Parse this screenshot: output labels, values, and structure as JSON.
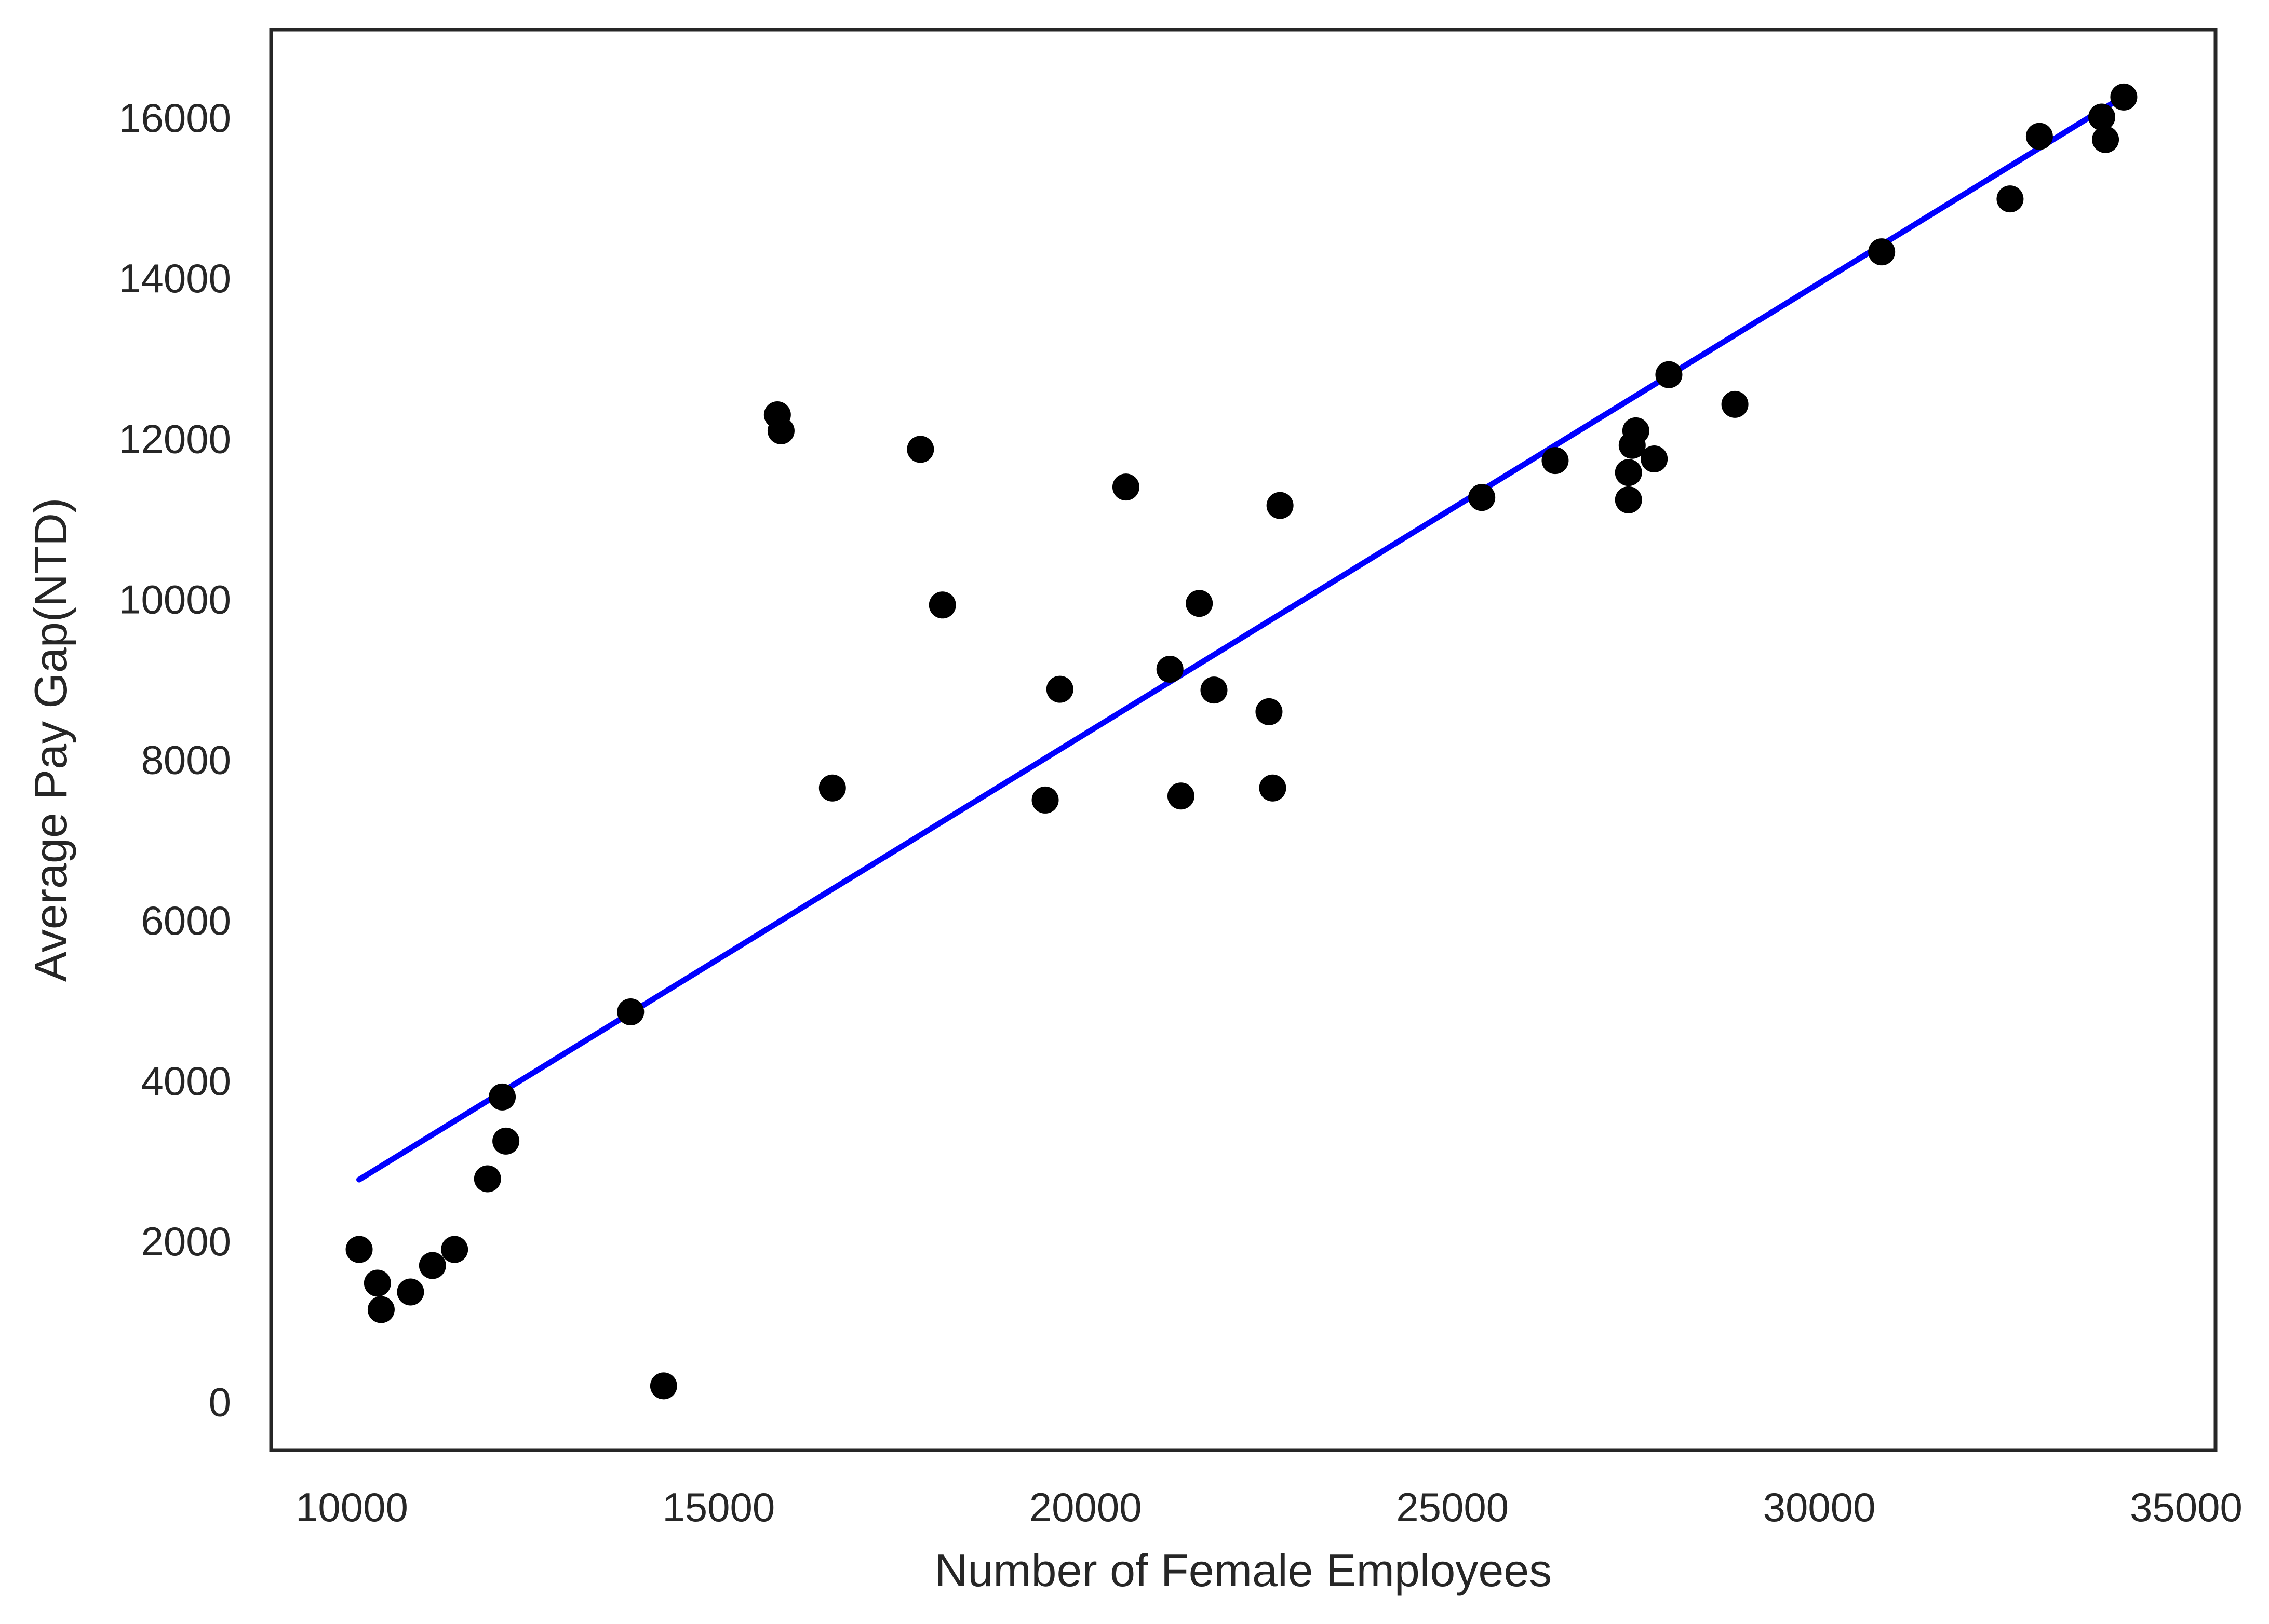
{
  "chart_data": {
    "type": "scatter",
    "title": "",
    "xlabel": "Number of Female Employees",
    "ylabel": "Average Pay Gap(NTD)",
    "xlim": [
      8900,
      35400
    ],
    "ylim": [
      -600,
      17100
    ],
    "x_ticks": [
      10000,
      15000,
      20000,
      25000,
      30000,
      35000
    ],
    "y_ticks": [
      0,
      2000,
      4000,
      6000,
      8000,
      10000,
      12000,
      14000,
      16000
    ],
    "grid": false,
    "legend": "none",
    "colors": {
      "points": "#000000",
      "fit_line": "#0000ff",
      "frame": "#262626",
      "text": "#262626"
    },
    "points": [
      [
        10100,
        1900
      ],
      [
        10350,
        1480
      ],
      [
        10400,
        1150
      ],
      [
        10800,
        1370
      ],
      [
        11100,
        1700
      ],
      [
        11400,
        1900
      ],
      [
        11850,
        2780
      ],
      [
        12050,
        3800
      ],
      [
        12100,
        3250
      ],
      [
        13800,
        4860
      ],
      [
        14250,
        200
      ],
      [
        15800,
        12300
      ],
      [
        15850,
        12100
      ],
      [
        16550,
        7650
      ],
      [
        17750,
        11870
      ],
      [
        18050,
        9930
      ],
      [
        19450,
        7500
      ],
      [
        19650,
        8880
      ],
      [
        20550,
        11400
      ],
      [
        21150,
        9130
      ],
      [
        21300,
        7550
      ],
      [
        21550,
        9950
      ],
      [
        21750,
        8870
      ],
      [
        22500,
        8600
      ],
      [
        22550,
        7650
      ],
      [
        22650,
        11170
      ],
      [
        25400,
        11270
      ],
      [
        26400,
        11730
      ],
      [
        27400,
        11240
      ],
      [
        27400,
        11580
      ],
      [
        27450,
        11920
      ],
      [
        27500,
        12100
      ],
      [
        27750,
        11750
      ],
      [
        27950,
        12800
      ],
      [
        28850,
        12430
      ],
      [
        30850,
        14330
      ],
      [
        32600,
        14990
      ],
      [
        33000,
        15770
      ],
      [
        33850,
        16010
      ],
      [
        33900,
        15730
      ],
      [
        34150,
        16260
      ]
    ],
    "fit_line": {
      "x": [
        10100,
        34150
      ],
      "y": [
        2770,
        16270
      ]
    }
  }
}
